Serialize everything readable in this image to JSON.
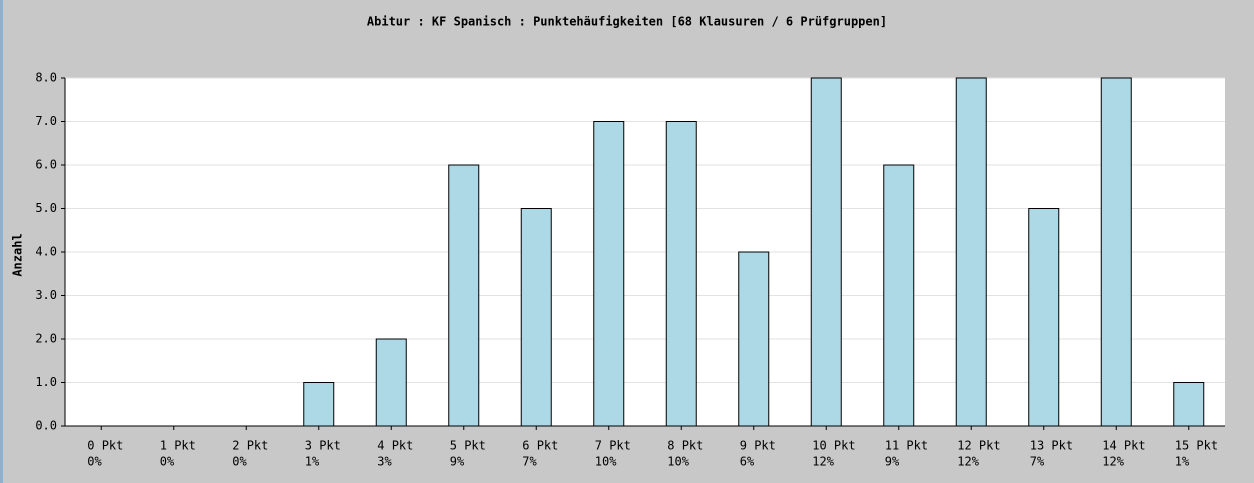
{
  "chart_data": {
    "type": "bar",
    "title": "Abitur :  KF Spanisch : Punktehäufigkeiten [68 Klausuren / 6 Prüfgruppen]",
    "y_label": "Anzahl",
    "categories": [
      "0 Pkt",
      "1 Pkt",
      "2 Pkt",
      "3 Pkt",
      "4 Pkt",
      "5 Pkt",
      "6 Pkt",
      "7 Pkt",
      "8 Pkt",
      "9 Pkt",
      "10 Pkt",
      "11 Pkt",
      "12 Pkt",
      "13 Pkt",
      "14 Pkt",
      "15 Pkt"
    ],
    "category_percents": [
      "0%",
      "0%",
      "0%",
      "1%",
      "3%",
      "9%",
      "7%",
      "10%",
      "10%",
      "6%",
      "12%",
      "9%",
      "12%",
      "7%",
      "12%",
      "1%"
    ],
    "values": [
      0,
      0,
      0,
      1,
      2,
      6,
      5,
      7,
      7,
      4,
      8,
      6,
      8,
      5,
      8,
      1
    ],
    "color": "#add8e6",
    "ylim": [
      0,
      8
    ],
    "yticks": [
      {
        "value": 0,
        "label": "0.0"
      },
      {
        "value": 1,
        "label": "1.0"
      },
      {
        "value": 2,
        "label": "2.0"
      },
      {
        "value": 3,
        "label": "3.0"
      },
      {
        "value": 4,
        "label": "4.0"
      },
      {
        "value": 5,
        "label": "5.0"
      },
      {
        "value": 6,
        "label": "6.0"
      },
      {
        "value": 7,
        "label": "7.0"
      },
      {
        "value": 8,
        "label": "8.0"
      }
    ],
    "grid": true
  }
}
